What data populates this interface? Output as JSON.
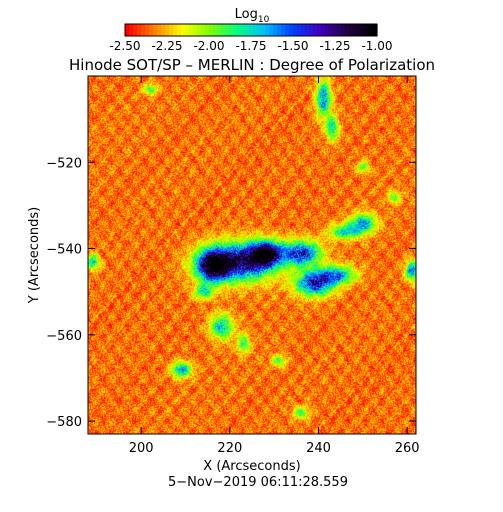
{
  "chart_data": {
    "type": "heatmap",
    "title": "Hinode SOT/SP – MERLIN : Degree of Polarization",
    "colorbar": {
      "label_main": "Log",
      "label_sub": "10",
      "range": [
        -2.5,
        -1.0
      ],
      "tick_labels": [
        "-2.50",
        "-2.25",
        "-2.00",
        "-1.75",
        "-1.50",
        "-1.25",
        "-1.00"
      ],
      "colors": [
        "#ff0000",
        "#ff8000",
        "#ffff00",
        "#80ff00",
        "#00ff80",
        "#00c0ff",
        "#0040ff",
        "#4000c0",
        "#200040",
        "#000000"
      ]
    },
    "xlabel": "X (Arcseconds)",
    "ylabel": "Y (Arcseconds)",
    "xlim": [
      188,
      262
    ],
    "ylim": [
      -583,
      -500
    ],
    "x_ticks": [
      200,
      220,
      240,
      260
    ],
    "x_tick_labels": [
      "200",
      "220",
      "240",
      "260"
    ],
    "y_ticks": [
      -520,
      -540,
      -560,
      -580
    ],
    "y_tick_labels": [
      "−520",
      "−540",
      "−560",
      "−580"
    ],
    "timestamp": "5−Nov−2019 06:11:28.559",
    "background_level": -2.35,
    "features": [
      {
        "x": 222,
        "y": -543,
        "sx": 5.5,
        "sy": 3.0,
        "amp": 1.15
      },
      {
        "x": 216,
        "y": -544,
        "sx": 2.5,
        "sy": 2.5,
        "amp": 1.1
      },
      {
        "x": 228,
        "y": -541,
        "sx": 2.5,
        "sy": 2.0,
        "amp": 1.1
      },
      {
        "x": 236,
        "y": -541,
        "sx": 3.0,
        "sy": 2.0,
        "amp": 0.95
      },
      {
        "x": 239,
        "y": -548,
        "sx": 3.0,
        "sy": 2.0,
        "amp": 0.95
      },
      {
        "x": 244,
        "y": -546,
        "sx": 3.0,
        "sy": 1.5,
        "amp": 0.7
      },
      {
        "x": 250,
        "y": -534,
        "sx": 2.0,
        "sy": 1.5,
        "amp": 0.7
      },
      {
        "x": 246,
        "y": -536,
        "sx": 2.5,
        "sy": 1.2,
        "amp": 0.6
      },
      {
        "x": 241,
        "y": -505,
        "sx": 1.2,
        "sy": 3.0,
        "amp": 0.75
      },
      {
        "x": 243,
        "y": -512,
        "sx": 1.0,
        "sy": 2.0,
        "amp": 0.6
      },
      {
        "x": 218,
        "y": -558,
        "sx": 1.8,
        "sy": 2.0,
        "amp": 0.65
      },
      {
        "x": 209,
        "y": -568,
        "sx": 1.5,
        "sy": 1.2,
        "amp": 0.75
      },
      {
        "x": 223,
        "y": -562,
        "sx": 1.0,
        "sy": 1.5,
        "amp": 0.5
      },
      {
        "x": 214,
        "y": -550,
        "sx": 1.5,
        "sy": 1.2,
        "amp": 0.55
      },
      {
        "x": 261,
        "y": -545,
        "sx": 1.0,
        "sy": 1.5,
        "amp": 0.8
      },
      {
        "x": 189,
        "y": -543,
        "sx": 1.0,
        "sy": 1.2,
        "amp": 0.6
      },
      {
        "x": 202,
        "y": -503,
        "sx": 1.0,
        "sy": 0.8,
        "amp": 0.5
      },
      {
        "x": 236,
        "y": -578,
        "sx": 1.2,
        "sy": 1.0,
        "amp": 0.45
      },
      {
        "x": 231,
        "y": -566,
        "sx": 1.2,
        "sy": 1.0,
        "amp": 0.4
      },
      {
        "x": 250,
        "y": -521,
        "sx": 1.0,
        "sy": 1.0,
        "amp": 0.4
      },
      {
        "x": 257,
        "y": -528,
        "sx": 1.0,
        "sy": 1.0,
        "amp": 0.4
      }
    ]
  }
}
